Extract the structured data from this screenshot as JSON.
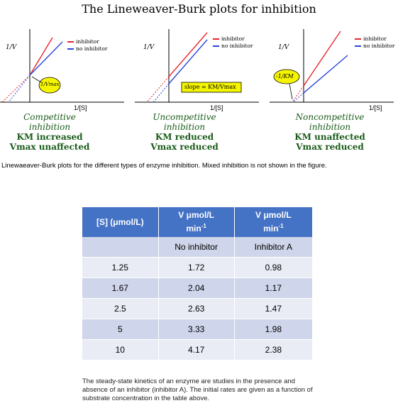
{
  "title": "The Lineweaver-Burk plots for inhibition",
  "panels": [
    {
      "y_axis": "1/V",
      "x_axis": "1/[S]",
      "legend": [
        "inhibitor",
        "no inhibitor"
      ],
      "callout": "1/Vmax",
      "caption_lines": [
        "Competitive",
        "inhibition",
        "KM increased",
        "Vmax unaffected"
      ]
    },
    {
      "y_axis": "1/V",
      "x_axis": "1/[S]",
      "legend": [
        "inhibitor",
        "no inhibitor"
      ],
      "callout": "slope = KM/Vmax",
      "caption_lines": [
        "Uncompetitive",
        "inhibition",
        "KM reduced",
        "Vmax reduced"
      ]
    },
    {
      "y_axis": "1/V",
      "x_axis": "1/[S]",
      "legend": [
        "inhibitor",
        "no inhibitor"
      ],
      "callout": "-1/KM",
      "caption_lines": [
        "Noncompetitive",
        "inhibition",
        "KM unaffected",
        "Vmax reduced"
      ]
    }
  ],
  "figure_caption": "Linewaeaver-Burk plots for the different types of enzyme inhibition. Mixed inhibition is not shown in the figure.",
  "table": {
    "headers": [
      "[S] (μmol/L)",
      "V μmol/L",
      "V μmol/L"
    ],
    "header_unit": "min",
    "header_exp": "-1",
    "subheaders": [
      "",
      "No inhibitor",
      "Inhibitor A"
    ],
    "rows": [
      [
        "1.25",
        "1.72",
        "0.98"
      ],
      [
        "1.67",
        "2.04",
        "1.17"
      ],
      [
        "2.5",
        "2.63",
        "1.47"
      ],
      [
        "5",
        "3.33",
        "1.98"
      ],
      [
        "10",
        "4.17",
        "2.38"
      ]
    ]
  },
  "table_caption": "The steady-state kinetics of an enzyme are studies in the presence and absence of an inhibitor (inhibitor A). The initial rates are given as a function of substrate concentration in the table above.",
  "colors": {
    "inhibitor": "#e8262b",
    "no_inhibitor": "#2a46d8",
    "callout_fill": "#f5f500",
    "caption_green": "#1a5c1a",
    "table_header": "#4472c4"
  }
}
